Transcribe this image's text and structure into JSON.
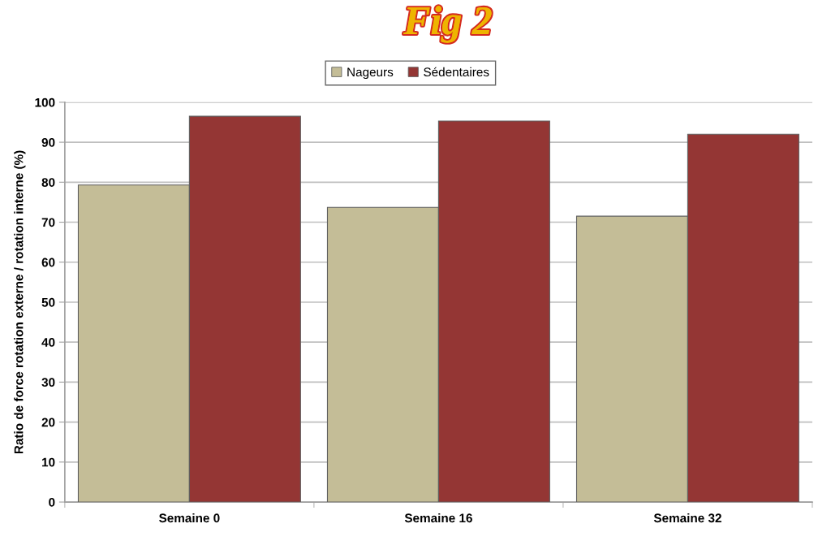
{
  "chart_data": {
    "type": "bar",
    "title": "Fig 2",
    "ylabel": "Ratio de force rotation externe / rotation interne (%)",
    "categories": [
      "Semaine 0",
      "Semaine 16",
      "Semaine 32"
    ],
    "series": [
      {
        "name": "Nageurs",
        "color": "#c4bd97",
        "values": [
          79.3,
          73.7,
          71.5
        ]
      },
      {
        "name": "Sédentaires",
        "color": "#943634",
        "values": [
          96.5,
          95.3,
          92.0
        ]
      }
    ],
    "ylim": [
      0,
      100
    ],
    "yticks": [
      0,
      10,
      20,
      30,
      40,
      50,
      60,
      70,
      80,
      90,
      100
    ],
    "grid": "y",
    "legend": "top"
  }
}
